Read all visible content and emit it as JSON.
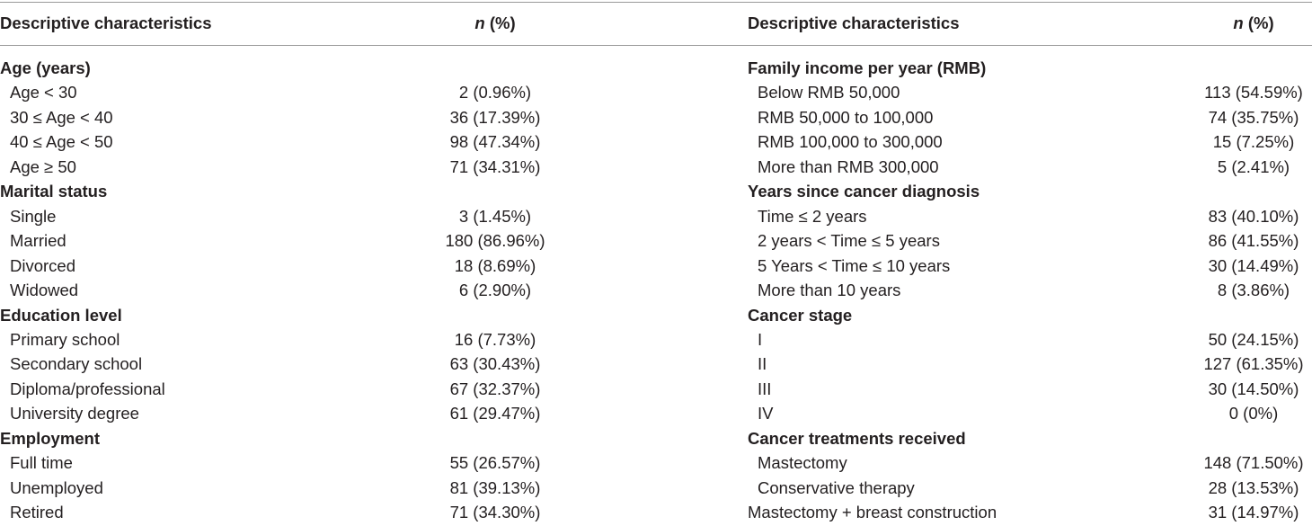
{
  "header": {
    "left_label": "Descriptive characteristics",
    "left_n": "n",
    "left_pct": " (%)",
    "right_label": "Descriptive characteristics",
    "right_n": "n",
    "right_pct": " (%)"
  },
  "left": [
    {
      "type": "cat",
      "label": "Age (years)",
      "value": ""
    },
    {
      "type": "sub",
      "label": "Age < 30",
      "value": "2 (0.96%)"
    },
    {
      "type": "sub",
      "label": "30 ≤ Age < 40",
      "value": "36 (17.39%)"
    },
    {
      "type": "sub",
      "label": "40 ≤ Age < 50",
      "value": "98 (47.34%)"
    },
    {
      "type": "sub",
      "label": "Age ≥ 50",
      "value": "71 (34.31%)"
    },
    {
      "type": "cat",
      "label": "Marital status",
      "value": ""
    },
    {
      "type": "sub",
      "label": "Single",
      "value": "3 (1.45%)"
    },
    {
      "type": "sub",
      "label": "Married",
      "value": "180 (86.96%)"
    },
    {
      "type": "sub",
      "label": "Divorced",
      "value": "18 (8.69%)"
    },
    {
      "type": "sub",
      "label": "Widowed",
      "value": "6 (2.90%)"
    },
    {
      "type": "cat",
      "label": "Education level",
      "value": ""
    },
    {
      "type": "sub",
      "label": "Primary school",
      "value": "16 (7.73%)"
    },
    {
      "type": "sub",
      "label": "Secondary school",
      "value": "63 (30.43%)"
    },
    {
      "type": "sub",
      "label": "Diploma/professional",
      "value": "67 (32.37%)"
    },
    {
      "type": "sub",
      "label": "University degree",
      "value": "61 (29.47%)"
    },
    {
      "type": "cat",
      "label": "Employment",
      "value": ""
    },
    {
      "type": "sub",
      "label": "Full time",
      "value": "55 (26.57%)"
    },
    {
      "type": "sub",
      "label": "Unemployed",
      "value": "81 (39.13%)"
    },
    {
      "type": "sub",
      "label": "Retired",
      "value": "71 (34.30%)"
    }
  ],
  "right": [
    {
      "type": "cat",
      "label": "Family income per year (RMB)",
      "value": ""
    },
    {
      "type": "sub",
      "label": "Below RMB 50,000",
      "value": "113 (54.59%)"
    },
    {
      "type": "sub",
      "label": "RMB 50,000 to 100,000",
      "value": "74 (35.75%)"
    },
    {
      "type": "sub",
      "label": "RMB 100,000 to 300,000",
      "value": "15 (7.25%)"
    },
    {
      "type": "sub",
      "label": "More than RMB 300,000",
      "value": "5 (2.41%)"
    },
    {
      "type": "cat",
      "label": "Years since cancer diagnosis",
      "value": ""
    },
    {
      "type": "sub",
      "label": "Time ≤ 2 years",
      "value": "83 (40.10%)"
    },
    {
      "type": "sub",
      "label": "2 years < Time ≤ 5 years",
      "value": "86 (41.55%)"
    },
    {
      "type": "sub",
      "label": "5 Years < Time ≤ 10 years",
      "value": "30 (14.49%)"
    },
    {
      "type": "sub",
      "label": "More than 10 years",
      "value": "8 (3.86%)"
    },
    {
      "type": "cat",
      "label": "Cancer stage",
      "value": ""
    },
    {
      "type": "sub",
      "label": "I",
      "value": "50 (24.15%)"
    },
    {
      "type": "sub",
      "label": "II",
      "value": "127 (61.35%)"
    },
    {
      "type": "sub",
      "label": "III",
      "value": "30 (14.50%)"
    },
    {
      "type": "sub",
      "label": "IV",
      "value": "0 (0%)"
    },
    {
      "type": "cat",
      "label": "Cancer treatments received",
      "value": ""
    },
    {
      "type": "sub",
      "label": "Mastectomy",
      "value": "148 (71.50%)"
    },
    {
      "type": "sub",
      "label": "Conservative therapy",
      "value": "28 (13.53%)"
    },
    {
      "type": "flush",
      "label": "Mastectomy + breast construction",
      "value": "31 (14.97%)"
    }
  ]
}
